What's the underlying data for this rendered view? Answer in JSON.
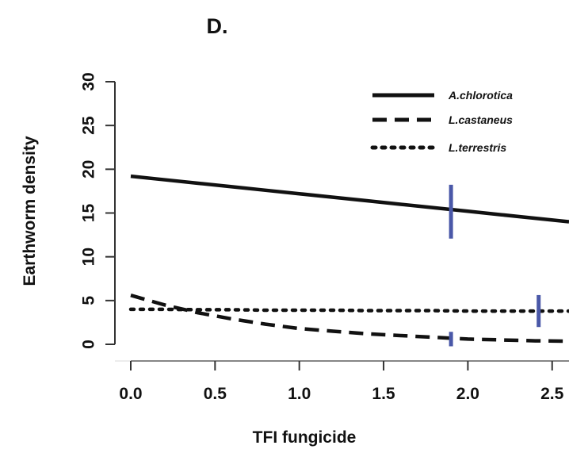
{
  "chart_data": {
    "type": "line",
    "title": "D.",
    "xlabel": "TFI fungicide",
    "ylabel": "Earthworm density",
    "xlim": [
      0.0,
      2.6
    ],
    "ylim": [
      0,
      30
    ],
    "x_ticks": [
      "0.0",
      "0.5",
      "1.0",
      "1.5",
      "2.0",
      "2.5"
    ],
    "y_ticks": [
      "0",
      "5",
      "10",
      "15",
      "20",
      "25",
      "30"
    ],
    "grid": false,
    "legend_position": "top-right",
    "series": [
      {
        "name": "A.chlorotica",
        "line_style": "solid",
        "x": [
          0.0,
          0.2,
          0.4,
          0.6,
          0.8,
          1.0,
          1.2,
          1.4,
          1.6,
          1.8,
          2.0,
          2.2,
          2.4,
          2.6
        ],
        "y": [
          19.2,
          18.8,
          18.4,
          18.0,
          17.6,
          17.2,
          16.8,
          16.4,
          16.0,
          15.6,
          15.2,
          14.8,
          14.4,
          14.0
        ]
      },
      {
        "name": "L.castaneus",
        "line_style": "dashed",
        "x": [
          0.0,
          0.2,
          0.4,
          0.6,
          0.8,
          1.0,
          1.2,
          1.4,
          1.6,
          1.8,
          2.0,
          2.2,
          2.4,
          2.6
        ],
        "y": [
          5.6,
          4.5,
          3.6,
          2.9,
          2.3,
          1.8,
          1.5,
          1.2,
          1.0,
          0.8,
          0.6,
          0.5,
          0.4,
          0.35
        ]
      },
      {
        "name": "L.terrestris",
        "line_style": "dotted",
        "x": [
          0.0,
          0.2,
          0.4,
          0.6,
          0.8,
          1.0,
          1.2,
          1.4,
          1.6,
          1.8,
          2.0,
          2.2,
          2.4,
          2.6
        ],
        "y": [
          4.0,
          4.0,
          3.95,
          3.95,
          3.9,
          3.9,
          3.9,
          3.85,
          3.85,
          3.85,
          3.8,
          3.8,
          3.8,
          3.8
        ]
      }
    ],
    "markers": [
      {
        "series": "A.chlorotica",
        "x": 1.9,
        "y_low": 12.3,
        "y_high": 18.0
      },
      {
        "series": "L.castaneus",
        "x": 1.9,
        "y_low": 0.0,
        "y_high": 1.2
      },
      {
        "series": "L.terrestris",
        "x": 2.42,
        "y_low": 2.2,
        "y_high": 5.4
      }
    ],
    "colors": {
      "lines": "#111111",
      "markers": "#4a58a8",
      "axes": "#333333"
    }
  }
}
